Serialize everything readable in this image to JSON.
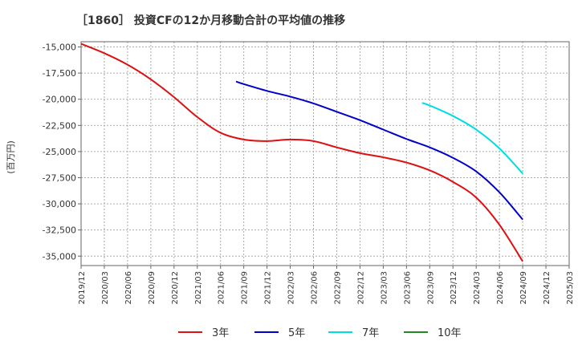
{
  "chart_data": {
    "type": "line",
    "title": "［1860］ 投資CFの12か月移動合計の平均値の推移",
    "ylabel": "(百万円)",
    "xlabel": "",
    "ylim": [
      -35900,
      -14500
    ],
    "yticks": [
      -15000,
      -17500,
      -20000,
      -22500,
      -25000,
      -27500,
      -30000,
      -32500,
      -35000
    ],
    "ytick_labels": [
      "-15,000",
      "-17,500",
      "-20,000",
      "-22,500",
      "-25,000",
      "-27,500",
      "-30,000",
      "-32,500",
      "-35,000"
    ],
    "xticks": [
      "2019/12",
      "2020/03",
      "2020/06",
      "2020/09",
      "2020/12",
      "2021/03",
      "2021/06",
      "2021/09",
      "2021/12",
      "2022/03",
      "2022/06",
      "2022/09",
      "2022/12",
      "2023/03",
      "2023/06",
      "2023/09",
      "2023/12",
      "2024/03",
      "2024/06",
      "2024/09",
      "2024/12",
      "2025/03"
    ],
    "grid": true,
    "legend_position": "bottom",
    "series": [
      {
        "name": "3年",
        "color": "#dd1111",
        "x": [
          "2019/12",
          "2020/03",
          "2020/06",
          "2020/09",
          "2020/12",
          "2021/03",
          "2021/06",
          "2021/09",
          "2021/12",
          "2022/03",
          "2022/06",
          "2022/09",
          "2022/12",
          "2023/03",
          "2023/06",
          "2023/09",
          "2023/12",
          "2024/03",
          "2024/06",
          "2024/09"
        ],
        "values": [
          -14700,
          -15600,
          -16700,
          -18100,
          -19800,
          -21700,
          -23200,
          -23850,
          -24000,
          -23850,
          -24000,
          -24600,
          -25150,
          -25550,
          -26050,
          -26800,
          -27900,
          -29400,
          -32000,
          -35500
        ]
      },
      {
        "name": "5年",
        "color": "#0000cc",
        "x": [
          "2021/08",
          "2021/09",
          "2021/12",
          "2022/03",
          "2022/06",
          "2022/09",
          "2022/12",
          "2023/03",
          "2023/06",
          "2023/09",
          "2023/12",
          "2024/03",
          "2024/06",
          "2024/09"
        ],
        "values": [
          -18300,
          -18550,
          -19200,
          -19750,
          -20400,
          -21200,
          -22000,
          -22900,
          -23800,
          -24600,
          -25600,
          -26900,
          -28900,
          -31500
        ]
      },
      {
        "name": "7年",
        "color": "#00dddd",
        "x": [
          "2023/08",
          "2023/09",
          "2023/12",
          "2024/03",
          "2024/06",
          "2024/09"
        ],
        "values": [
          -20350,
          -20600,
          -21600,
          -22900,
          -24700,
          -27100
        ]
      },
      {
        "name": "10年",
        "color": "#228822",
        "x": [],
        "values": []
      }
    ]
  }
}
